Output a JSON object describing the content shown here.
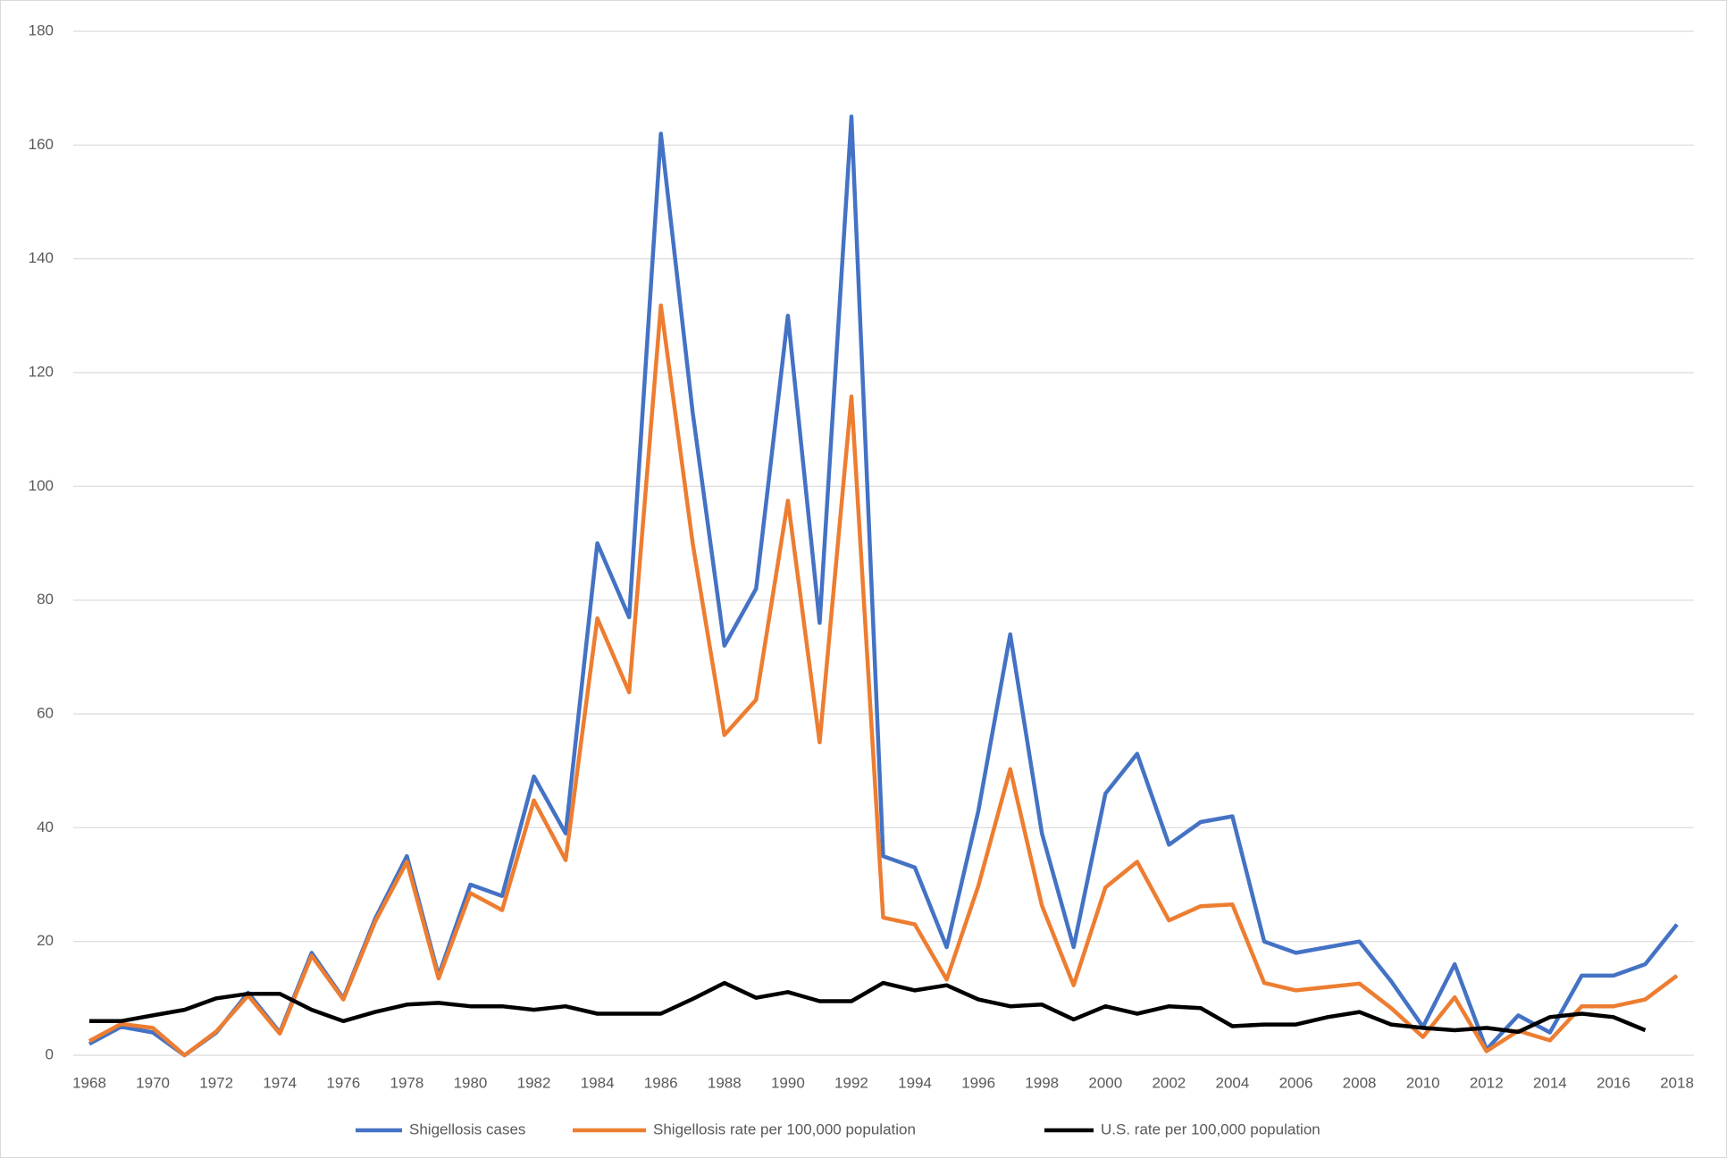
{
  "chart_data": {
    "type": "line",
    "categories": [
      "1968",
      null,
      "1970",
      null,
      "1972",
      null,
      "1974",
      null,
      "1976",
      null,
      "1978",
      null,
      "1980",
      null,
      "1982",
      null,
      "1984",
      null,
      "1986",
      null,
      "1988",
      null,
      "1990",
      null,
      "1992",
      null,
      "1994",
      null,
      "1996",
      null,
      "1998",
      null,
      "2000",
      null,
      "2002",
      null,
      "2004",
      null,
      "2006",
      null,
      "2008",
      null,
      "2010",
      null,
      "2012",
      null,
      "2014",
      null,
      "2016",
      null,
      "2018"
    ],
    "series": [
      {
        "name": "Shigellosis cases",
        "color": "#4472c4",
        "values": [
          2,
          5,
          4,
          0,
          4,
          11,
          4,
          18,
          10,
          24,
          35,
          14,
          30,
          28,
          49,
          39,
          90,
          77,
          162,
          113,
          72,
          82,
          130,
          76,
          165,
          35,
          33,
          19,
          43,
          74,
          39,
          19,
          46,
          53,
          37,
          41,
          42,
          20,
          18,
          19,
          20,
          13,
          5,
          16,
          1,
          7,
          4,
          14,
          14,
          16,
          23
        ]
      },
      {
        "name": "Shigellosis rate per 100,000 population",
        "color": "#ed7d31",
        "values": [
          2.5,
          5.5,
          4.8,
          0,
          4.2,
          10.5,
          3.8,
          17.5,
          9.8,
          23.5,
          34,
          13.5,
          28.5,
          25.5,
          44.8,
          34.3,
          76.8,
          63.8,
          131.8,
          90,
          56.3,
          62.5,
          97.5,
          55,
          115.8,
          24.2,
          23,
          13.3,
          29.8,
          50.3,
          26.3,
          12.3,
          29.5,
          34,
          23.7,
          26.2,
          26.5,
          12.7,
          11.4,
          12,
          12.6,
          8.3,
          3.2,
          10.2,
          0.7,
          4.3,
          2.6,
          8.6,
          8.6,
          9.8,
          14
        ]
      },
      {
        "name": "U.S. rate per 100,000 population",
        "color": "#000000",
        "values": [
          6,
          6,
          7,
          8,
          10,
          10.8,
          10.8,
          8,
          6,
          7.6,
          8.9,
          9.2,
          8.6,
          8.6,
          8,
          8.6,
          7.3,
          7.3,
          7.3,
          9.9,
          12.7,
          10.1,
          11.1,
          9.5,
          9.5,
          12.7,
          11.4,
          12.3,
          9.8,
          8.6,
          8.9,
          6.3,
          8.6,
          7.3,
          8.6,
          8.3,
          5.1,
          5.4,
          5.4,
          6.7,
          7.6,
          5.4,
          4.8,
          4.4,
          4.8,
          4.1,
          6.7,
          7.3,
          6.7,
          4.4,
          null
        ]
      }
    ],
    "ylim": [
      0,
      180
    ],
    "yticks": [
      0,
      20,
      40,
      60,
      80,
      100,
      120,
      140,
      160,
      180
    ],
    "grid": true,
    "legend": "bottom"
  }
}
